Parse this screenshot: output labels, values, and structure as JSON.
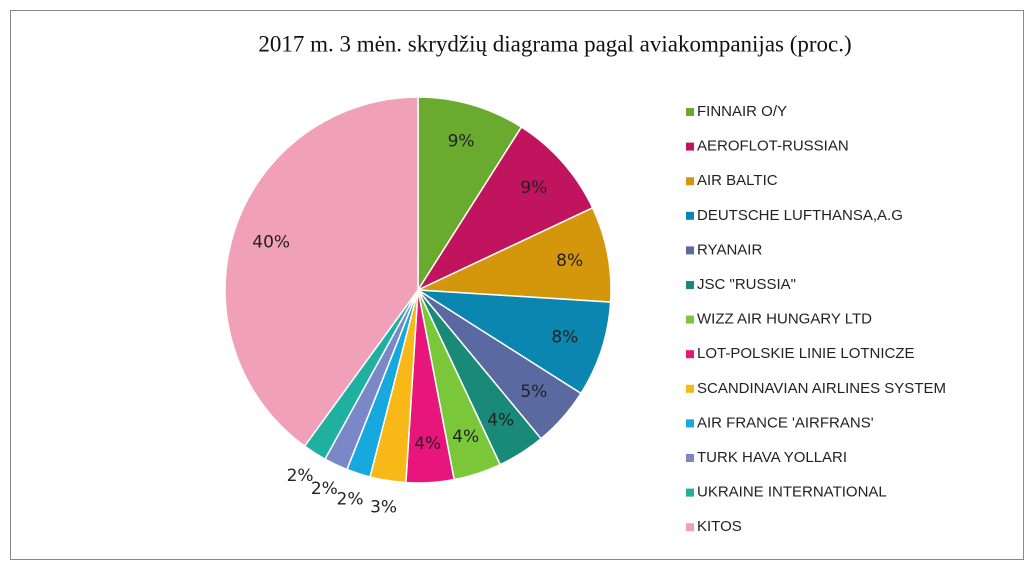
{
  "chart_data": {
    "type": "pie",
    "title": "2017 m. 3 mėn. skrydžių diagrama pagal aviakompanijas (proc.)",
    "categories": [
      "FINNAIR O/Y",
      "AEROFLOT-RUSSIAN",
      "AIR BALTIC",
      "DEUTSCHE LUFTHANSA,A.G",
      "RYANAIR",
      "JSC \"RUSSIA\"",
      "WIZZ AIR HUNGARY LTD",
      "LOT-POLSKIE LINIE LOTNICZE",
      "SCANDINAVIAN AIRLINES SYSTEM",
      "AIR FRANCE 'AIRFRANS'",
      "TURK HAVA YOLLARI",
      "UKRAINE INTERNATIONAL",
      "KITOS"
    ],
    "values": [
      9,
      9,
      8,
      8,
      5,
      4,
      4,
      4,
      3,
      2,
      2,
      2,
      40
    ],
    "value_labels": [
      "9%",
      "9%",
      "8%",
      "8%",
      "5%",
      "4%",
      "4%",
      "4%",
      "3%",
      "2%",
      "2%",
      "2%",
      "40%"
    ],
    "colors": [
      "#6aaa2e",
      "#c0145e",
      "#d4960a",
      "#0a86b0",
      "#5a6aa0",
      "#1a8a78",
      "#7ac83a",
      "#e8157a",
      "#f8b818",
      "#18a8e0",
      "#7a88c8",
      "#20b0a0",
      "#f0a0b8"
    ],
    "legend": "right"
  }
}
